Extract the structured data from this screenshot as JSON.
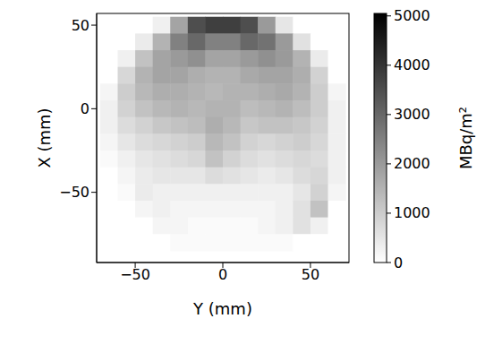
{
  "chart_data": {
    "type": "heatmap",
    "x_label": "Y (mm)",
    "y_label": "X (mm)",
    "x": [
      -65,
      -55,
      -45,
      -35,
      -25,
      -15,
      -5,
      5,
      15,
      25,
      35,
      45,
      55,
      65
    ],
    "y": [
      50,
      40,
      30,
      20,
      10,
      0,
      -10,
      -20,
      -30,
      -40,
      -50,
      -60,
      -70,
      -80
    ],
    "cells": [
      [
        0,
        0,
        0,
        300,
        1800,
        3500,
        3800,
        3800,
        3500,
        2000,
        500,
        0,
        0,
        0
      ],
      [
        0,
        0,
        400,
        1500,
        2500,
        3000,
        2500,
        2500,
        3000,
        2800,
        2000,
        600,
        0,
        0
      ],
      [
        0,
        300,
        1200,
        1800,
        2000,
        2200,
        1800,
        1800,
        2000,
        2200,
        2000,
        1500,
        400,
        0
      ],
      [
        0,
        800,
        1500,
        1800,
        1800,
        1600,
        1500,
        1500,
        1700,
        1800,
        1800,
        1600,
        900,
        0
      ],
      [
        200,
        1000,
        1400,
        1600,
        1600,
        1500,
        1400,
        1500,
        1500,
        1600,
        1700,
        1500,
        1000,
        200
      ],
      [
        300,
        900,
        1200,
        1400,
        1500,
        1400,
        1500,
        1500,
        1300,
        1400,
        1500,
        1300,
        1000,
        300
      ],
      [
        300,
        700,
        900,
        1100,
        1200,
        1300,
        1600,
        1400,
        1100,
        1200,
        1200,
        1100,
        900,
        300
      ],
      [
        200,
        500,
        700,
        800,
        900,
        1000,
        1400,
        1200,
        900,
        800,
        900,
        1000,
        800,
        300
      ],
      [
        100,
        300,
        500,
        600,
        700,
        800,
        1200,
        900,
        700,
        600,
        700,
        800,
        700,
        300
      ],
      [
        0,
        200,
        400,
        500,
        500,
        500,
        700,
        600,
        500,
        400,
        500,
        700,
        800,
        300
      ],
      [
        0,
        100,
        400,
        300,
        300,
        300,
        300,
        300,
        300,
        300,
        300,
        500,
        900,
        200
      ],
      [
        0,
        0,
        200,
        300,
        200,
        200,
        200,
        200,
        200,
        200,
        300,
        600,
        1200,
        0
      ],
      [
        0,
        0,
        0,
        200,
        200,
        100,
        100,
        100,
        100,
        200,
        300,
        600,
        300,
        0
      ],
      [
        0,
        0,
        0,
        0,
        100,
        100,
        100,
        100,
        100,
        100,
        100,
        0,
        0,
        0
      ]
    ],
    "xlim": [
      -72,
      72
    ],
    "ylim": [
      -92,
      57
    ],
    "xticks": [
      {
        "value": -50,
        "label": "−50"
      },
      0,
      50
    ],
    "yticks": [
      {
        "value": -50,
        "label": "−50"
      },
      0,
      50
    ],
    "colors": [
      "#ffffff",
      "#000000"
    ],
    "colorbar": {
      "label": "MBq/m²",
      "range": [
        0,
        5050
      ],
      "ticks": [
        0,
        1000,
        2000,
        3000,
        4000,
        5000
      ]
    }
  }
}
